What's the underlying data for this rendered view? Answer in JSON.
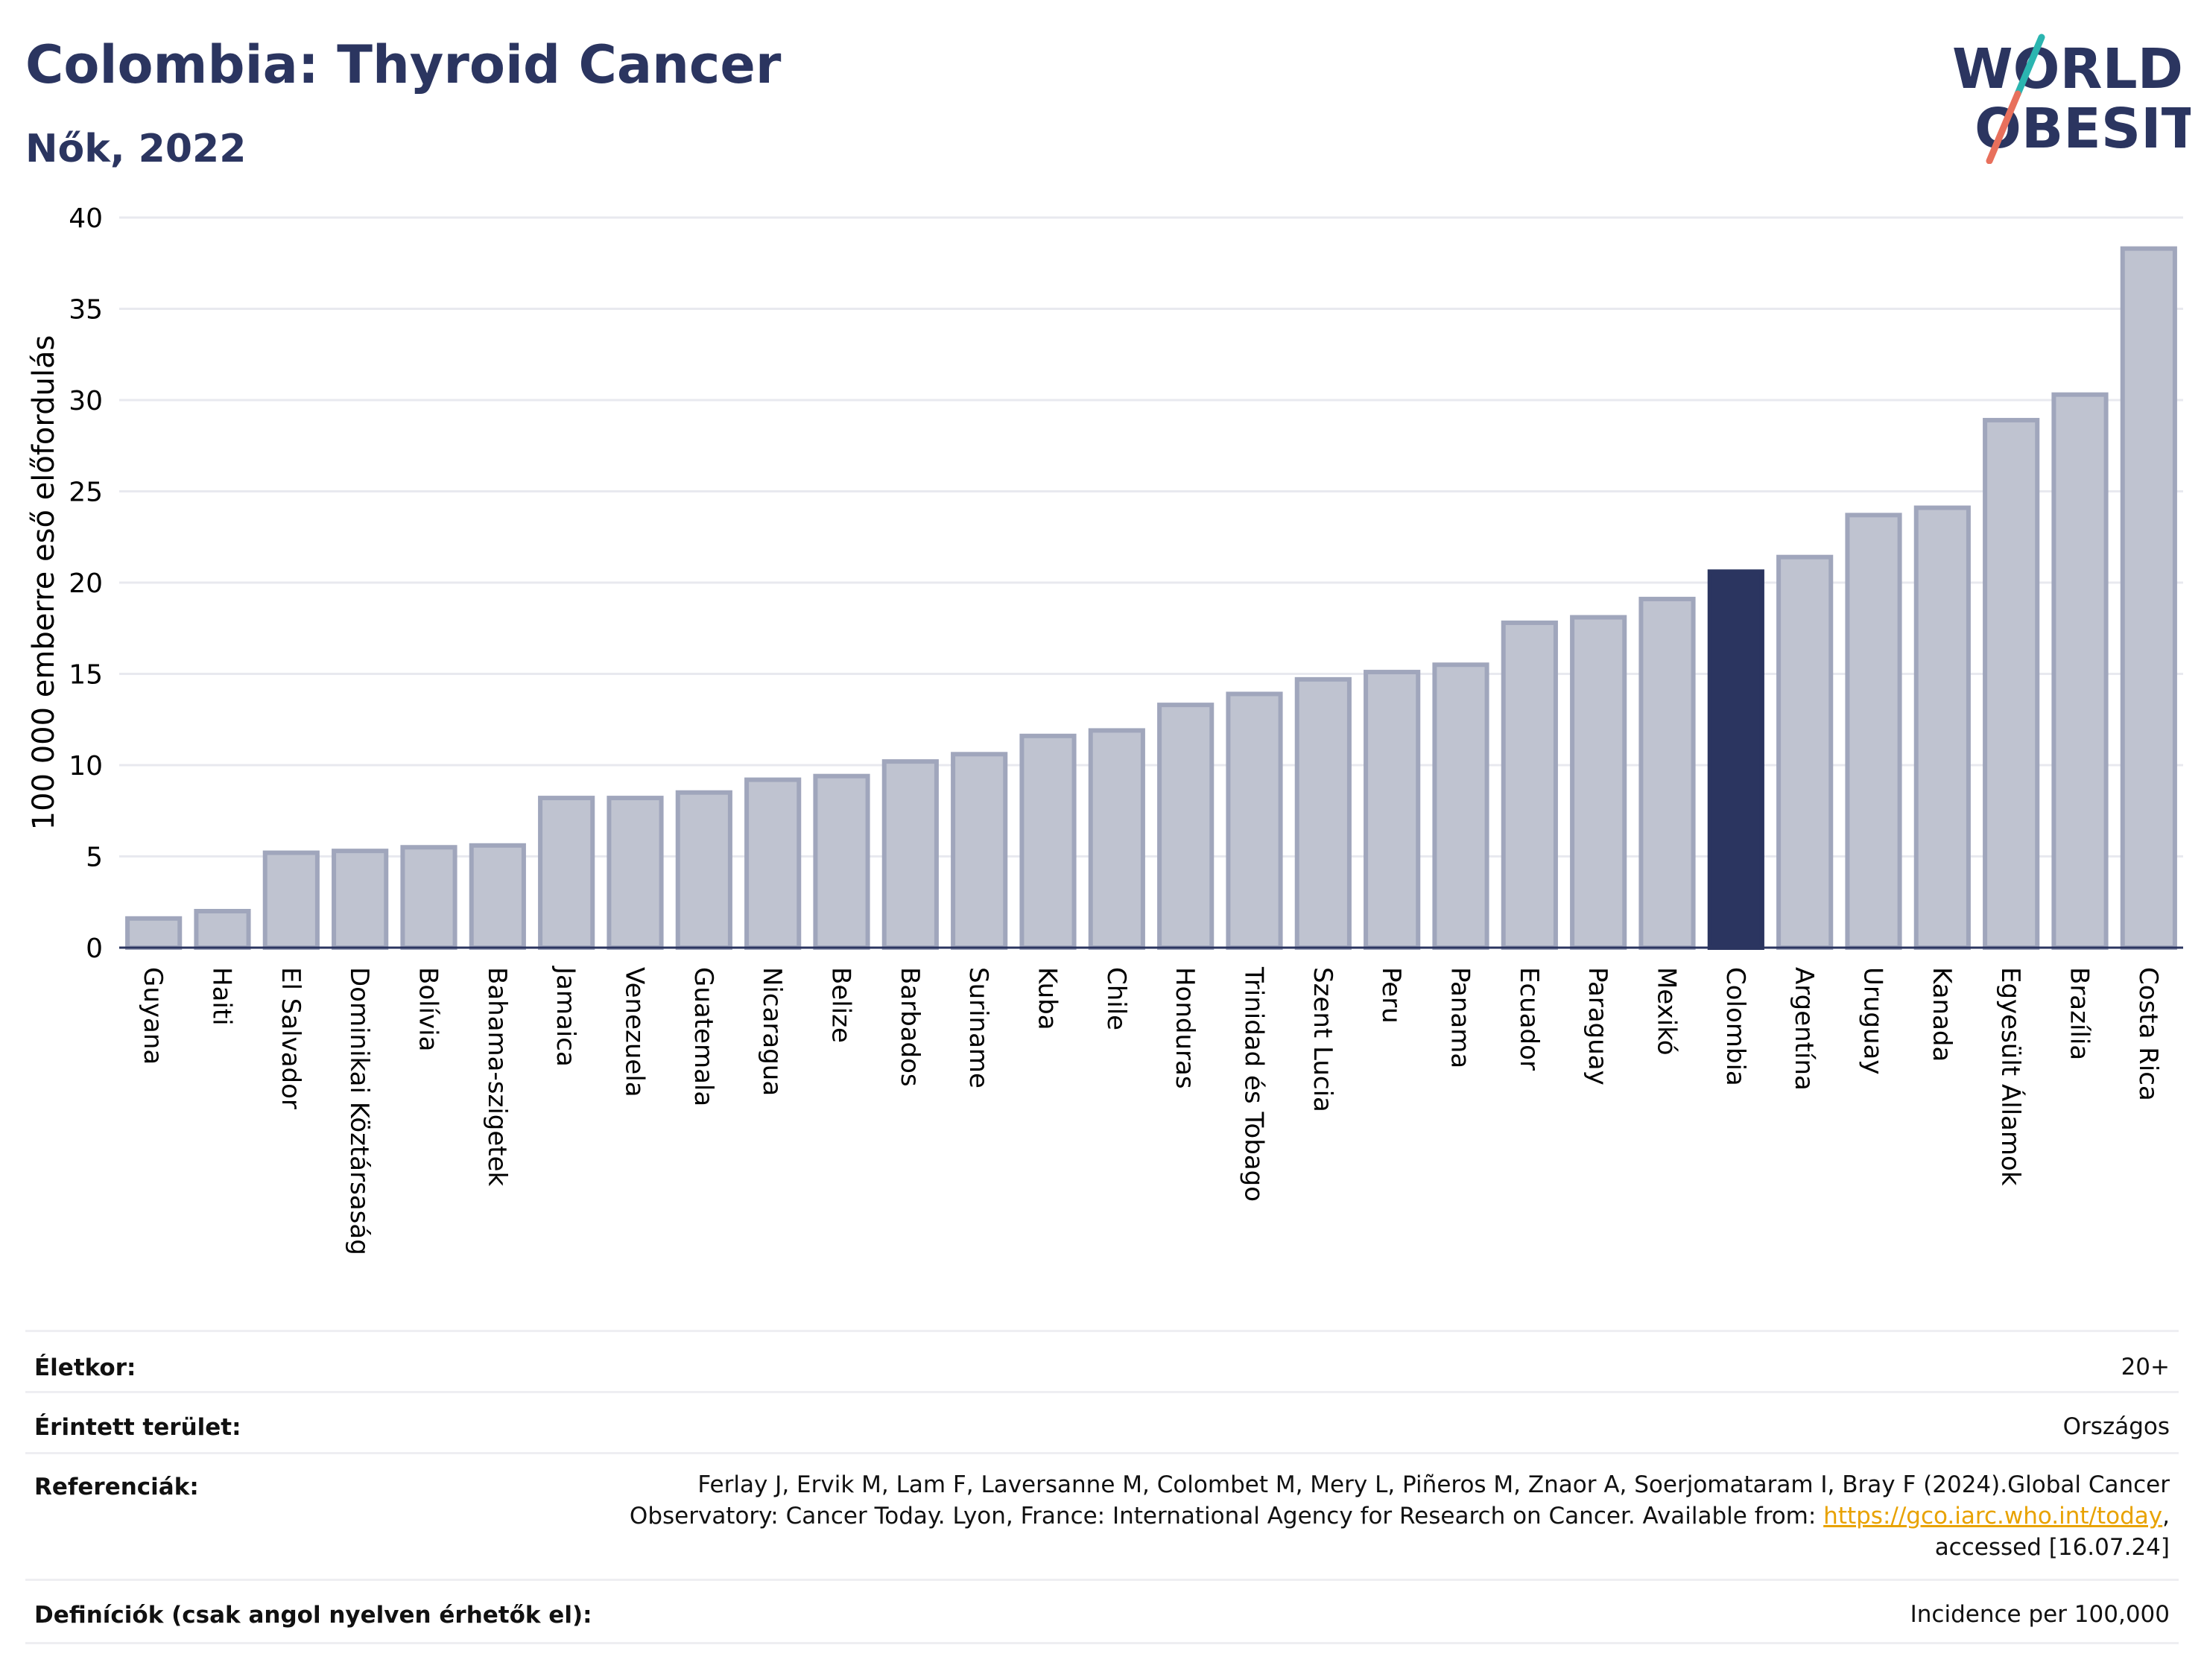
{
  "header": {
    "title": "Colombia: Thyroid Cancer",
    "subtitle": "Nők, 2022"
  },
  "logo": {
    "line1": "WORLD",
    "line2": "OBESITY",
    "accent_colors": [
      "#2bb5b0",
      "#e8705c"
    ]
  },
  "chart_data": {
    "type": "bar",
    "ylabel": "100 000 emberre eső előfordulás",
    "ylim": [
      0,
      40
    ],
    "yticks": [
      0,
      5,
      10,
      15,
      20,
      25,
      30,
      35,
      40
    ],
    "highlight": "Colombia",
    "colors": {
      "bar": "#bfc3d0",
      "bar_edge": "#a0a6bc",
      "highlight": "#2b3560",
      "grid": "#e8e9ef"
    },
    "categories": [
      "Guyana",
      "Haiti",
      "El Salvador",
      "Dominikai Köztársaság",
      "Bolívia",
      "Bahama-szigetek",
      "Jamaica",
      "Venezuela",
      "Guatemala",
      "Nicaragua",
      "Belize",
      "Barbados",
      "Suriname",
      "Kuba",
      "Chile",
      "Honduras",
      "Trinidad és Tobago",
      "Szent Lucia",
      "Peru",
      "Panama",
      "Ecuador",
      "Paraguay",
      "Mexikó",
      "Colombia",
      "Argentína",
      "Uruguay",
      "Kanada",
      "Egyesült Államok",
      "Brazília",
      "Costa Rica"
    ],
    "values": [
      1.6,
      2.0,
      5.2,
      5.3,
      5.5,
      5.6,
      8.2,
      8.2,
      8.5,
      9.2,
      9.4,
      10.2,
      10.6,
      11.6,
      11.9,
      13.3,
      13.9,
      14.7,
      15.1,
      15.5,
      17.8,
      18.1,
      19.1,
      20.6,
      21.4,
      23.7,
      24.1,
      28.9,
      30.3,
      38.3
    ]
  },
  "info_table": [
    {
      "label": "Életkor:",
      "value": "20+"
    },
    {
      "label": "Érintett terület:",
      "value": "Országos"
    },
    {
      "label": "Referenciák:",
      "value_pre": "Ferlay J, Ervik M, Lam F, Laversanne M, Colombet M, Mery L, Piñeros M, Znaor A, Soerjomataram I, Bray F (2024).Global Cancer Observatory: Cancer Today. Lyon, France: International Agency for Research on Cancer. Available from: ",
      "link": "https://gco.iarc.who.int/today",
      "value_post": ", accessed [16.07.24]"
    },
    {
      "label": "Definíciók (csak angol nyelven érhetők el):",
      "value": "Incidence per 100,000"
    }
  ]
}
